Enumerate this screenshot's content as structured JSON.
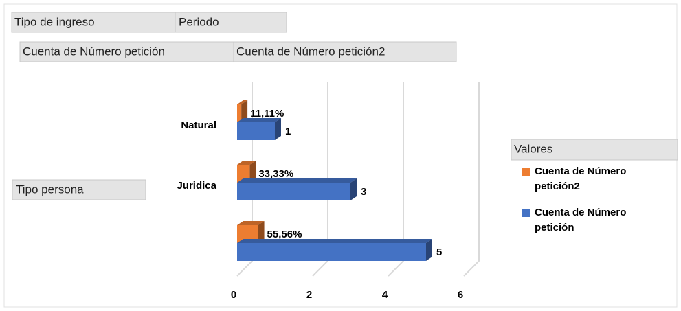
{
  "chart_data": {
    "type": "bar3d",
    "filter_fields": [
      "Tipo de ingreso",
      "Periodo"
    ],
    "axis_fields": [
      "Tipo persona"
    ],
    "legend_title": "Valores",
    "categories": [
      "Natural",
      "Juridica",
      null
    ],
    "series": [
      {
        "name": "Cuenta de Número petición",
        "color": "#4472c4",
        "values": [
          1,
          3,
          5
        ]
      },
      {
        "name": "Cuenta de Número petición2",
        "color": "#ed7d31",
        "values": [
          0.1111,
          0.3333,
          0.5556
        ],
        "value_labels": [
          "11,11%",
          "33,33%",
          "55,56%"
        ]
      }
    ],
    "xlim": [
      0,
      6
    ],
    "xticks": [
      0,
      2,
      4,
      6
    ],
    "grid": true
  }
}
